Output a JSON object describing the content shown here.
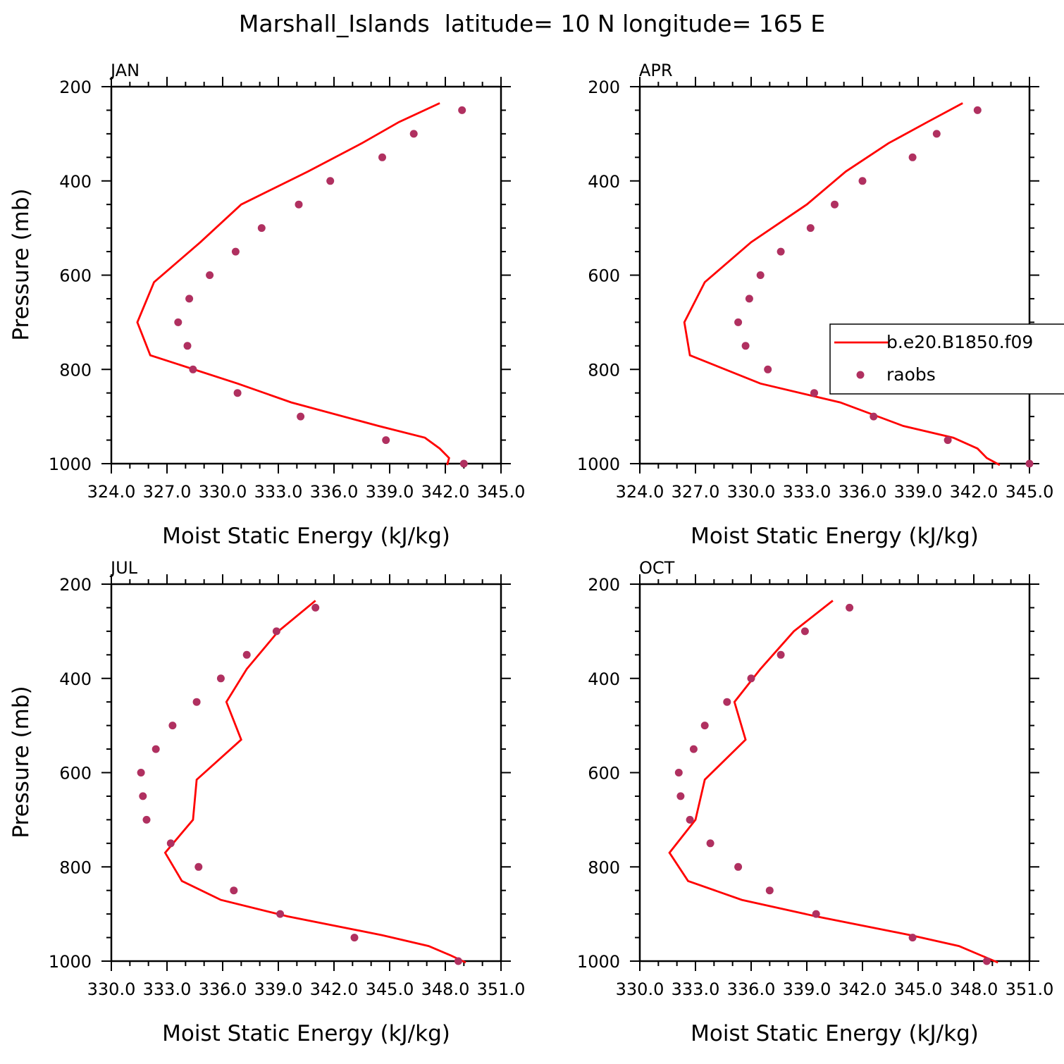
{
  "figure": {
    "title": "Marshall_Islands  latitude= 10 N longitude= 165 E"
  },
  "colors": {
    "model_line": "#ff0000",
    "obs_marker": "#b03060",
    "axes": "#000000",
    "background": "#ffffff"
  },
  "legend": {
    "placement": "right side of APR panel, extending past the frame",
    "entries": [
      {
        "label": "b.e20.B1850.f09",
        "style": "line"
      },
      {
        "label": "raobs",
        "style": "marker"
      }
    ]
  },
  "chart_data": [
    {
      "type": "line",
      "panel": "JAN",
      "xlabel": "Moist Static Energy (kJ/kg)",
      "ylabel": "Pressure (mb)",
      "xlim": [
        324.0,
        345.0
      ],
      "ylim": [
        1000,
        200
      ],
      "y_reversed": true,
      "xticks": [
        324.0,
        327.0,
        330.0,
        333.0,
        336.0,
        339.0,
        342.0,
        345.0
      ],
      "xtick_labels": [
        "324.0",
        "327.0",
        "330.0",
        "333.0",
        "336.0",
        "339.0",
        "342.0",
        "345.0"
      ],
      "yticks": [
        200,
        400,
        600,
        800,
        1000
      ],
      "ytick_labels": [
        "200",
        "400",
        "600",
        "800",
        "1000"
      ],
      "grid": false,
      "series": [
        {
          "name": "b.e20.B1850.f09",
          "style": "line",
          "x": [
            341.7,
            339.5,
            337.5,
            334.6,
            331.0,
            328.8,
            326.3,
            325.4,
            326.1,
            330.8,
            333.7,
            338.4,
            340.9,
            341.7,
            342.2,
            342.1
          ],
          "y": [
            235,
            275,
            320,
            380,
            450,
            530,
            615,
            700,
            770,
            830,
            870,
            920,
            945,
            968,
            988,
            1003
          ]
        },
        {
          "name": "raobs",
          "style": "marker",
          "x": [
            342.9,
            340.3,
            338.6,
            335.8,
            334.1,
            332.1,
            330.7,
            329.3,
            328.2,
            327.6,
            328.1,
            328.4,
            330.8,
            334.2,
            338.8,
            343.0
          ],
          "y": [
            250,
            300,
            350,
            400,
            450,
            500,
            550,
            600,
            650,
            700,
            750,
            800,
            850,
            900,
            950,
            1000
          ]
        }
      ]
    },
    {
      "type": "line",
      "panel": "APR",
      "xlabel": "Moist Static Energy (kJ/kg)",
      "ylabel": "",
      "xlim": [
        324.0,
        345.0
      ],
      "ylim": [
        1000,
        200
      ],
      "y_reversed": true,
      "xticks": [
        324.0,
        327.0,
        330.0,
        333.0,
        336.0,
        339.0,
        342.0,
        345.0
      ],
      "xtick_labels": [
        "324.0",
        "327.0",
        "330.0",
        "333.0",
        "336.0",
        "339.0",
        "342.0",
        "345.0"
      ],
      "yticks": [
        200,
        400,
        600,
        800,
        1000
      ],
      "ytick_labels": [
        "200",
        "400",
        "600",
        "800",
        "1000"
      ],
      "grid": false,
      "series": [
        {
          "name": "b.e20.B1850.f09",
          "style": "line",
          "x": [
            341.4,
            339.5,
            337.4,
            335.1,
            333.0,
            330.0,
            327.5,
            326.4,
            326.7,
            330.5,
            334.8,
            338.2,
            340.9,
            342.2,
            342.7,
            343.4
          ],
          "y": [
            235,
            275,
            320,
            380,
            450,
            530,
            615,
            700,
            770,
            830,
            870,
            920,
            945,
            968,
            988,
            1003
          ]
        },
        {
          "name": "raobs",
          "style": "marker",
          "x": [
            342.2,
            340.0,
            338.7,
            336.0,
            334.5,
            333.2,
            331.6,
            330.5,
            329.9,
            329.3,
            329.7,
            330.9,
            333.4,
            336.6,
            340.6,
            345.0
          ],
          "y": [
            250,
            300,
            350,
            400,
            450,
            500,
            550,
            600,
            650,
            700,
            750,
            800,
            850,
            900,
            950,
            1000
          ]
        }
      ]
    },
    {
      "type": "line",
      "panel": "JUL",
      "xlabel": "Moist Static Energy (kJ/kg)",
      "ylabel": "Pressure (mb)",
      "xlim": [
        330.0,
        351.0
      ],
      "ylim": [
        1000,
        200
      ],
      "y_reversed": true,
      "xticks": [
        330.0,
        333.0,
        336.0,
        339.0,
        342.0,
        345.0,
        348.0,
        351.0
      ],
      "xtick_labels": [
        "330.0",
        "333.0",
        "336.0",
        "339.0",
        "342.0",
        "345.0",
        "348.0",
        "351.0"
      ],
      "yticks": [
        200,
        400,
        600,
        800,
        1000
      ],
      "ytick_labels": [
        "200",
        "400",
        "600",
        "800",
        "1000"
      ],
      "grid": false,
      "series": [
        {
          "name": "b.e20.B1850.f09",
          "style": "line",
          "x": [
            341.0,
            339.0,
            337.3,
            336.2,
            337.0,
            334.6,
            334.4,
            332.9,
            333.8,
            335.9,
            339.5,
            344.6,
            347.1,
            348.3,
            349.1
          ],
          "y": [
            235,
            300,
            380,
            450,
            530,
            615,
            700,
            770,
            830,
            870,
            905,
            945,
            968,
            988,
            1003
          ]
        },
        {
          "name": "raobs",
          "style": "marker",
          "x": [
            341.0,
            338.9,
            337.3,
            335.9,
            334.6,
            333.3,
            332.4,
            331.6,
            331.7,
            331.9,
            333.2,
            334.7,
            336.6,
            339.1,
            343.1,
            348.7
          ],
          "y": [
            250,
            300,
            350,
            400,
            450,
            500,
            550,
            600,
            650,
            700,
            750,
            800,
            850,
            900,
            950,
            1000
          ]
        }
      ]
    },
    {
      "type": "line",
      "panel": "OCT",
      "xlabel": "Moist Static Energy (kJ/kg)",
      "ylabel": "",
      "xlim": [
        330.0,
        351.0
      ],
      "ylim": [
        1000,
        200
      ],
      "y_reversed": true,
      "xticks": [
        330.0,
        333.0,
        336.0,
        339.0,
        342.0,
        345.0,
        348.0,
        351.0
      ],
      "xtick_labels": [
        "330.0",
        "333.0",
        "336.0",
        "339.0",
        "342.0",
        "345.0",
        "348.0",
        "351.0"
      ],
      "yticks": [
        200,
        400,
        600,
        800,
        1000
      ],
      "ytick_labels": [
        "200",
        "400",
        "600",
        "800",
        "1000"
      ],
      "grid": false,
      "series": [
        {
          "name": "b.e20.B1850.f09",
          "style": "line",
          "x": [
            340.4,
            338.3,
            336.5,
            335.1,
            335.7,
            333.5,
            333.0,
            331.6,
            332.6,
            335.5,
            339.5,
            344.6,
            347.2,
            348.4,
            349.3
          ],
          "y": [
            235,
            300,
            380,
            450,
            530,
            615,
            700,
            770,
            830,
            870,
            905,
            945,
            968,
            988,
            1003
          ]
        },
        {
          "name": "raobs",
          "style": "marker",
          "x": [
            341.3,
            338.9,
            337.6,
            336.0,
            334.7,
            333.5,
            332.9,
            332.1,
            332.2,
            332.7,
            333.8,
            335.3,
            337.0,
            339.5,
            344.7,
            348.7
          ],
          "y": [
            250,
            300,
            350,
            400,
            450,
            500,
            550,
            600,
            650,
            700,
            750,
            800,
            850,
            900,
            950,
            1000
          ]
        }
      ]
    }
  ]
}
